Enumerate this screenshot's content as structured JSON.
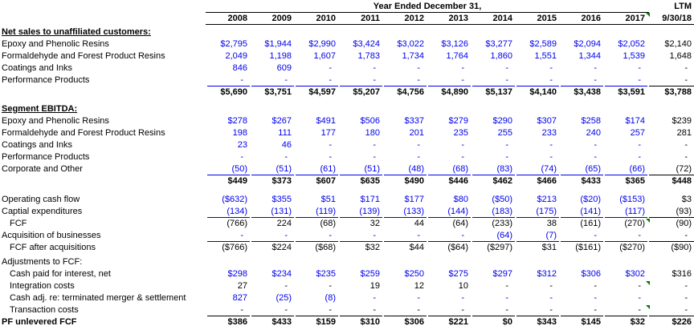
{
  "colors": {
    "input_blue": "#0000EE",
    "text_black": "#000000",
    "comment_marker_green": "#008000"
  },
  "icons": {
    "comment_indicator": "green-triangle-icon"
  },
  "header": {
    "group_title": "Year Ended December 31,",
    "ltm_label": "LTM",
    "ltm_date": "9/30/18",
    "years": [
      "2008",
      "2009",
      "2010",
      "2011",
      "2012",
      "2013",
      "2014",
      "2015",
      "2016",
      "2017"
    ],
    "year_marker_col": 9
  },
  "sections": [
    {
      "title": "Net sales to unaffiliated customers:",
      "title_bold": true,
      "title_underline": true,
      "rows": [
        {
          "label": "Epoxy and Phenolic Resins",
          "indent": 0,
          "color": "blue",
          "bold": false,
          "border": false,
          "values": [
            "$2,795",
            "$1,944",
            "$2,990",
            "$3,424",
            "$3,022",
            "$3,126",
            "$3,277",
            "$2,589",
            "$2,094",
            "$2,052",
            "$2,140"
          ]
        },
        {
          "label": "Formaldehyde and Forest Product Resins",
          "indent": 0,
          "color": "blue",
          "bold": false,
          "border": false,
          "values": [
            "2,049",
            "1,198",
            "1,607",
            "1,783",
            "1,734",
            "1,764",
            "1,860",
            "1,551",
            "1,344",
            "1,539",
            "1,648"
          ]
        },
        {
          "label": "Coatings and Inks",
          "indent": 0,
          "color": "blue",
          "bold": false,
          "border": false,
          "values": [
            "846",
            "609",
            "-",
            "-",
            "-",
            "-",
            "-",
            "-",
            "-",
            "-",
            "-"
          ]
        },
        {
          "label": "Performance Products",
          "indent": 0,
          "color": "blue",
          "bold": false,
          "border": true,
          "values": [
            "-",
            "-",
            "-",
            "-",
            "-",
            "-",
            "-",
            "-",
            "-",
            "-",
            "-"
          ]
        },
        {
          "label": "",
          "indent": 0,
          "color": "black",
          "bold": true,
          "border": false,
          "values": [
            "$5,690",
            "$3,751",
            "$4,597",
            "$5,207",
            "$4,756",
            "$4,890",
            "$5,137",
            "$4,140",
            "$3,438",
            "$3,591",
            "$3,788"
          ]
        }
      ]
    },
    {
      "title": "Segment EBITDA:",
      "title_bold": true,
      "title_underline": true,
      "rows": [
        {
          "label": "Epoxy and Phenolic Resins",
          "indent": 0,
          "color": "blue",
          "bold": false,
          "border": false,
          "values": [
            "$278",
            "$267",
            "$491",
            "$506",
            "$337",
            "$279",
            "$290",
            "$307",
            "$258",
            "$174",
            "$239"
          ]
        },
        {
          "label": "Formaldehyde and Forest Product Resins",
          "indent": 0,
          "color": "blue",
          "bold": false,
          "border": false,
          "values": [
            "198",
            "111",
            "177",
            "180",
            "201",
            "235",
            "255",
            "233",
            "240",
            "257",
            "281"
          ]
        },
        {
          "label": "Coatings and Inks",
          "indent": 0,
          "color": "blue",
          "bold": false,
          "border": false,
          "values": [
            "23",
            "46",
            "-",
            "-",
            "-",
            "-",
            "-",
            "-",
            "-",
            "-",
            "-"
          ]
        },
        {
          "label": "Performance Products",
          "indent": 0,
          "color": "blue",
          "bold": false,
          "border": false,
          "values": [
            "-",
            "-",
            "-",
            "-",
            "-",
            "-",
            "-",
            "-",
            "-",
            "-",
            "-"
          ]
        },
        {
          "label": "Corporate and Other",
          "indent": 0,
          "color": "blue",
          "bold": false,
          "border": true,
          "values": [
            "(50)",
            "(51)",
            "(61)",
            "(51)",
            "(48)",
            "(68)",
            "(83)",
            "(74)",
            "(65)",
            "(66)",
            "(72)"
          ]
        },
        {
          "label": "",
          "indent": 0,
          "color": "black",
          "bold": true,
          "border": false,
          "values": [
            "$449",
            "$373",
            "$607",
            "$635",
            "$490",
            "$446",
            "$462",
            "$466",
            "$433",
            "$365",
            "$448"
          ]
        }
      ]
    },
    {
      "title": "",
      "title_bold": false,
      "title_underline": false,
      "rows": [
        {
          "label": "Operating cash flow",
          "indent": 0,
          "color": "blue",
          "bold": false,
          "border": false,
          "values": [
            "($632)",
            "$355",
            "$51",
            "$171",
            "$177",
            "$80",
            "($50)",
            "$213",
            "($20)",
            "($153)",
            "$3"
          ]
        },
        {
          "label": "Captial expenditures",
          "indent": 0,
          "color": "blue",
          "bold": false,
          "border": true,
          "values": [
            "(134)",
            "(131)",
            "(119)",
            "(139)",
            "(133)",
            "(144)",
            "(183)",
            "(175)",
            "(141)",
            "(117)",
            "(93)"
          ]
        },
        {
          "label": "FCF",
          "indent": 1,
          "color": "black",
          "bold": false,
          "border": false,
          "markers": [
            9
          ],
          "values": [
            "(766)",
            "224",
            "(68)",
            "32",
            "44",
            "(64)",
            "(233)",
            "38",
            "(161)",
            "(270)",
            "(90)"
          ]
        },
        {
          "label": "Acquisition of businesses",
          "indent": 0,
          "color": "blue",
          "bold": false,
          "border": true,
          "values": [
            "-",
            "-",
            "-",
            "-",
            "-",
            "-",
            "(64)",
            "(7)",
            "-",
            "-",
            "-"
          ]
        },
        {
          "label": "FCF after acquisitions",
          "indent": 1,
          "color": "black",
          "bold": false,
          "border": false,
          "values": [
            "($766)",
            "$224",
            "($68)",
            "$32",
            "$44",
            "($64)",
            "($297)",
            "$31",
            "($161)",
            "($270)",
            "($90)"
          ]
        }
      ]
    },
    {
      "title": "Adjustments to FCF:",
      "title_bold": false,
      "title_underline": false,
      "rows": [
        {
          "label": "Cash paid for interest, net",
          "indent": 1,
          "color": "blue",
          "bold": false,
          "border": false,
          "values": [
            "$298",
            "$234",
            "$235",
            "$259",
            "$250",
            "$275",
            "$297",
            "$312",
            "$306",
            "$302",
            "$316"
          ]
        },
        {
          "label": "Integration costs",
          "indent": 1,
          "color": "black",
          "bold": false,
          "border": false,
          "markers": [
            9
          ],
          "values": [
            "27",
            "-",
            "-",
            "19",
            "12",
            "10",
            "-",
            "-",
            "-",
            "-",
            "-"
          ]
        },
        {
          "label": "Cash adj. re: terminated merger & settlement",
          "indent": 1,
          "color": "blue",
          "bold": false,
          "border": false,
          "values": [
            "827",
            "(25)",
            "(8)",
            "-",
            "-",
            "-",
            "-",
            "-",
            "-",
            "-",
            "-"
          ]
        },
        {
          "label": "Transaction costs",
          "indent": 1,
          "color": "black",
          "bold": false,
          "border": true,
          "markers": [
            9
          ],
          "values": [
            "-",
            "-",
            "-",
            "-",
            "-",
            "-",
            "-",
            "-",
            "-",
            "-",
            "-"
          ]
        },
        {
          "label": "PF unlevered FCF",
          "indent": 0,
          "color": "black",
          "bold": true,
          "border": false,
          "values": [
            "$386",
            "$433",
            "$159",
            "$310",
            "$306",
            "$221",
            "$0",
            "$343",
            "$145",
            "$32",
            "$226"
          ]
        }
      ]
    }
  ]
}
